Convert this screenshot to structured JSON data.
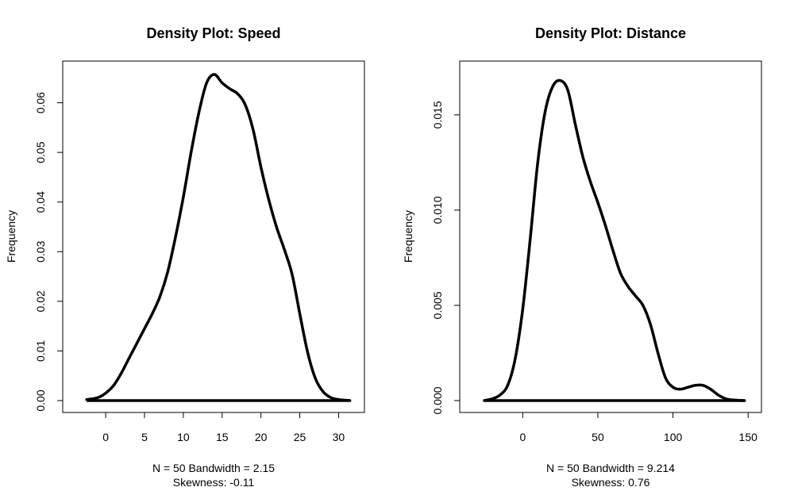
{
  "chart_data": [
    {
      "type": "area",
      "title": "Density Plot: Speed",
      "ylabel": "Frequency",
      "xlabel_line1": "N = 50   Bandwidth = 2.15",
      "xlabel_line2": "Skewness: -0.11",
      "xlim": [
        -4,
        32
      ],
      "ylim": [
        0,
        0.066
      ],
      "xticks": [
        0,
        5,
        10,
        15,
        20,
        25,
        30
      ],
      "xtick_labels": [
        "0",
        "5",
        "10",
        "15",
        "20",
        "25",
        "30"
      ],
      "yticks": [
        0,
        0.01,
        0.02,
        0.03,
        0.04,
        0.05,
        0.06
      ],
      "ytick_labels": [
        "0.00",
        "0.01",
        "0.02",
        "0.03",
        "0.04",
        "0.05",
        "0.06"
      ],
      "grid": false,
      "series": [
        {
          "x": [
            -2.45,
            -1,
            0,
            1,
            2,
            3,
            4,
            5,
            6,
            7,
            8,
            9,
            10,
            11,
            12,
            13,
            14,
            15,
            16,
            17,
            18,
            19,
            20,
            21,
            22,
            23,
            24,
            25,
            26,
            27,
            28,
            29,
            30,
            31.45
          ],
          "y": [
            0.0002,
            0.0006,
            0.0015,
            0.003,
            0.0055,
            0.0085,
            0.0115,
            0.0145,
            0.0175,
            0.021,
            0.026,
            0.033,
            0.041,
            0.05,
            0.058,
            0.064,
            0.0657,
            0.064,
            0.0628,
            0.0618,
            0.0595,
            0.0545,
            0.047,
            0.0405,
            0.035,
            0.0305,
            0.0255,
            0.0175,
            0.0098,
            0.0045,
            0.0018,
            0.0006,
            0.0002,
            0.0
          ]
        }
      ]
    },
    {
      "type": "area",
      "title": "Density Plot: Distance",
      "ylabel": "Frequency",
      "xlabel_line1": "N = 50   Bandwidth = 9.214",
      "xlabel_line2": "Skewness: 0.76",
      "xlim": [
        -34,
        152
      ],
      "ylim": [
        0,
        0.0172
      ],
      "xticks": [
        0,
        50,
        100,
        150
      ],
      "xtick_labels": [
        "0",
        "50",
        "100",
        "150"
      ],
      "yticks": [
        0,
        0.005,
        0.01,
        0.015
      ],
      "ytick_labels": [
        "0.000",
        "0.005",
        "0.010",
        "0.015"
      ],
      "grid": false,
      "series": [
        {
          "x": [
            -25.6,
            -20,
            -15,
            -10,
            -5,
            0,
            5,
            10,
            15,
            20,
            25,
            30,
            35,
            40,
            45,
            50,
            55,
            60,
            65,
            70,
            75,
            80,
            85,
            90,
            95,
            100,
            105,
            110,
            115,
            120,
            125,
            130,
            135,
            140,
            147.6
          ],
          "y": [
            0.0,
            0.0001,
            0.0003,
            0.0008,
            0.0022,
            0.0048,
            0.0085,
            0.0125,
            0.0152,
            0.0165,
            0.0168,
            0.0163,
            0.0145,
            0.0128,
            0.0115,
            0.0104,
            0.0092,
            0.0079,
            0.0067,
            0.006,
            0.0055,
            0.005,
            0.004,
            0.0025,
            0.0012,
            0.0007,
            0.0006,
            0.0007,
            0.0008,
            0.0008,
            0.0006,
            0.0003,
            0.0001,
            3e-05,
            0.0
          ]
        }
      ]
    }
  ]
}
